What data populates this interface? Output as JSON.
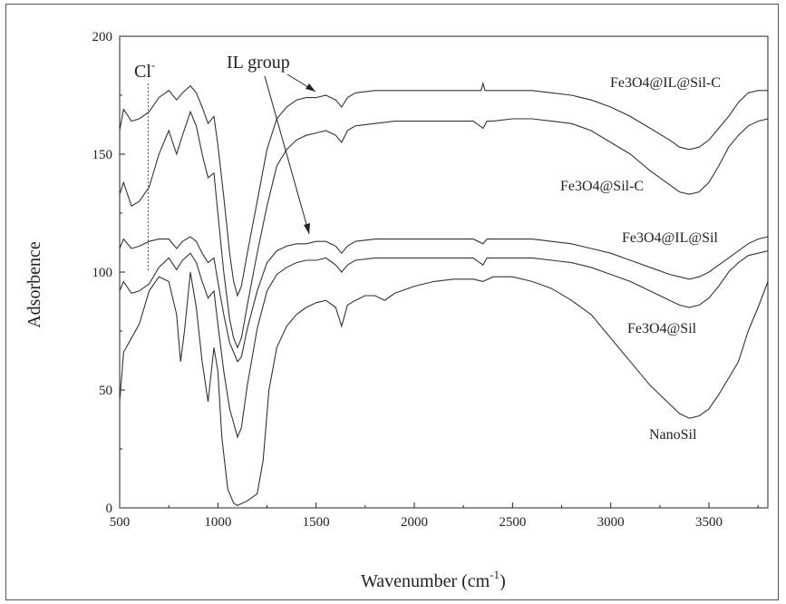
{
  "chart_data": {
    "type": "line",
    "title": "",
    "xlabel": "Wavenumber (cm",
    "xlabel_sup": "-1",
    "xlabel_close": ")",
    "ylabel": "Adsorbence",
    "xlim": [
      500,
      3800
    ],
    "ylim": [
      0,
      200
    ],
    "xticks": [
      500,
      1000,
      1500,
      2000,
      2500,
      3000,
      3500
    ],
    "yticks": [
      0,
      50,
      100,
      150,
      200
    ],
    "grid": false,
    "series": [
      {
        "name": "Fe3O4@IL@Sil-C",
        "points": [
          [
            500,
            160
          ],
          [
            520,
            169
          ],
          [
            560,
            164
          ],
          [
            600,
            165
          ],
          [
            650,
            168
          ],
          [
            700,
            174
          ],
          [
            750,
            177
          ],
          [
            790,
            173
          ],
          [
            820,
            176
          ],
          [
            860,
            179
          ],
          [
            890,
            176
          ],
          [
            920,
            170
          ],
          [
            950,
            163
          ],
          [
            980,
            166
          ],
          [
            1000,
            154
          ],
          [
            1030,
            132
          ],
          [
            1060,
            108
          ],
          [
            1080,
            96
          ],
          [
            1100,
            90
          ],
          [
            1120,
            94
          ],
          [
            1150,
            108
          ],
          [
            1200,
            130
          ],
          [
            1250,
            152
          ],
          [
            1300,
            165
          ],
          [
            1350,
            170
          ],
          [
            1400,
            173
          ],
          [
            1450,
            174
          ],
          [
            1500,
            174
          ],
          [
            1550,
            175
          ],
          [
            1600,
            173
          ],
          [
            1630,
            170
          ],
          [
            1660,
            174
          ],
          [
            1700,
            176
          ],
          [
            1800,
            177
          ],
          [
            1900,
            177
          ],
          [
            2000,
            177
          ],
          [
            2100,
            177
          ],
          [
            2200,
            177
          ],
          [
            2300,
            177
          ],
          [
            2340,
            177
          ],
          [
            2350,
            180
          ],
          [
            2360,
            177
          ],
          [
            2400,
            177
          ],
          [
            2500,
            177
          ],
          [
            2600,
            177
          ],
          [
            2700,
            176
          ],
          [
            2800,
            175
          ],
          [
            2900,
            173
          ],
          [
            3000,
            170
          ],
          [
            3100,
            166
          ],
          [
            3200,
            161
          ],
          [
            3300,
            156
          ],
          [
            3350,
            153
          ],
          [
            3400,
            152
          ],
          [
            3450,
            153
          ],
          [
            3500,
            156
          ],
          [
            3550,
            161
          ],
          [
            3600,
            166
          ],
          [
            3650,
            172
          ],
          [
            3700,
            176
          ],
          [
            3750,
            177
          ],
          [
            3800,
            177
          ]
        ]
      },
      {
        "name": "Fe3O4@Sil-C",
        "points": [
          [
            500,
            133
          ],
          [
            520,
            138
          ],
          [
            560,
            128
          ],
          [
            600,
            130
          ],
          [
            650,
            136
          ],
          [
            700,
            150
          ],
          [
            750,
            160
          ],
          [
            790,
            150
          ],
          [
            820,
            158
          ],
          [
            860,
            168
          ],
          [
            890,
            162
          ],
          [
            920,
            150
          ],
          [
            950,
            140
          ],
          [
            980,
            142
          ],
          [
            1000,
            125
          ],
          [
            1030,
            100
          ],
          [
            1060,
            80
          ],
          [
            1080,
            72
          ],
          [
            1100,
            68
          ],
          [
            1120,
            72
          ],
          [
            1150,
            86
          ],
          [
            1200,
            108
          ],
          [
            1250,
            128
          ],
          [
            1300,
            145
          ],
          [
            1350,
            152
          ],
          [
            1400,
            156
          ],
          [
            1450,
            158
          ],
          [
            1500,
            159
          ],
          [
            1550,
            160
          ],
          [
            1600,
            158
          ],
          [
            1630,
            155
          ],
          [
            1660,
            160
          ],
          [
            1700,
            162
          ],
          [
            1800,
            163
          ],
          [
            1900,
            164
          ],
          [
            2000,
            164
          ],
          [
            2100,
            164
          ],
          [
            2200,
            164
          ],
          [
            2300,
            164
          ],
          [
            2350,
            161
          ],
          [
            2370,
            164
          ],
          [
            2400,
            164
          ],
          [
            2500,
            165
          ],
          [
            2600,
            165
          ],
          [
            2700,
            164
          ],
          [
            2800,
            163
          ],
          [
            2900,
            160
          ],
          [
            3000,
            155
          ],
          [
            3100,
            150
          ],
          [
            3200,
            143
          ],
          [
            3300,
            137
          ],
          [
            3350,
            134
          ],
          [
            3400,
            133
          ],
          [
            3450,
            134
          ],
          [
            3500,
            138
          ],
          [
            3550,
            145
          ],
          [
            3600,
            153
          ],
          [
            3650,
            158
          ],
          [
            3700,
            162
          ],
          [
            3750,
            164
          ],
          [
            3800,
            165
          ]
        ]
      },
      {
        "name": "Fe3O4@IL@Sil",
        "points": [
          [
            500,
            110
          ],
          [
            520,
            114
          ],
          [
            560,
            110
          ],
          [
            600,
            111
          ],
          [
            650,
            113
          ],
          [
            700,
            114
          ],
          [
            750,
            114
          ],
          [
            790,
            110
          ],
          [
            820,
            113
          ],
          [
            860,
            115
          ],
          [
            890,
            113
          ],
          [
            920,
            108
          ],
          [
            950,
            104
          ],
          [
            980,
            106
          ],
          [
            1000,
            96
          ],
          [
            1030,
            82
          ],
          [
            1060,
            70
          ],
          [
            1080,
            66
          ],
          [
            1100,
            62
          ],
          [
            1120,
            64
          ],
          [
            1150,
            76
          ],
          [
            1200,
            92
          ],
          [
            1250,
            104
          ],
          [
            1300,
            109
          ],
          [
            1350,
            111
          ],
          [
            1400,
            112
          ],
          [
            1450,
            112
          ],
          [
            1500,
            113
          ],
          [
            1550,
            113
          ],
          [
            1600,
            111
          ],
          [
            1630,
            108
          ],
          [
            1660,
            111
          ],
          [
            1700,
            113
          ],
          [
            1800,
            114
          ],
          [
            1900,
            114
          ],
          [
            2000,
            114
          ],
          [
            2100,
            114
          ],
          [
            2200,
            114
          ],
          [
            2300,
            114
          ],
          [
            2350,
            112
          ],
          [
            2370,
            114
          ],
          [
            2400,
            114
          ],
          [
            2500,
            114
          ],
          [
            2600,
            114
          ],
          [
            2700,
            113
          ],
          [
            2800,
            112
          ],
          [
            2900,
            110
          ],
          [
            3000,
            108
          ],
          [
            3100,
            105
          ],
          [
            3200,
            102
          ],
          [
            3300,
            99
          ],
          [
            3350,
            98
          ],
          [
            3400,
            97
          ],
          [
            3450,
            98
          ],
          [
            3500,
            100
          ],
          [
            3550,
            103
          ],
          [
            3600,
            106
          ],
          [
            3650,
            109
          ],
          [
            3700,
            112
          ],
          [
            3750,
            114
          ],
          [
            3800,
            115
          ]
        ]
      },
      {
        "name": "Fe3O4@Sil",
        "points": [
          [
            500,
            92
          ],
          [
            520,
            96
          ],
          [
            560,
            91
          ],
          [
            600,
            92
          ],
          [
            650,
            95
          ],
          [
            700,
            102
          ],
          [
            750,
            106
          ],
          [
            790,
            101
          ],
          [
            820,
            105
          ],
          [
            860,
            108
          ],
          [
            890,
            104
          ],
          [
            920,
            96
          ],
          [
            950,
            89
          ],
          [
            980,
            92
          ],
          [
            1000,
            78
          ],
          [
            1030,
            58
          ],
          [
            1060,
            42
          ],
          [
            1080,
            36
          ],
          [
            1100,
            30
          ],
          [
            1120,
            34
          ],
          [
            1150,
            52
          ],
          [
            1200,
            76
          ],
          [
            1250,
            92
          ],
          [
            1300,
            99
          ],
          [
            1350,
            102
          ],
          [
            1400,
            104
          ],
          [
            1450,
            105
          ],
          [
            1500,
            105
          ],
          [
            1550,
            106
          ],
          [
            1600,
            103
          ],
          [
            1630,
            100
          ],
          [
            1660,
            103
          ],
          [
            1700,
            105
          ],
          [
            1800,
            106
          ],
          [
            1900,
            106
          ],
          [
            2000,
            106
          ],
          [
            2100,
            106
          ],
          [
            2200,
            106
          ],
          [
            2300,
            106
          ],
          [
            2350,
            103
          ],
          [
            2370,
            106
          ],
          [
            2400,
            106
          ],
          [
            2500,
            106
          ],
          [
            2600,
            106
          ],
          [
            2700,
            105
          ],
          [
            2800,
            104
          ],
          [
            2900,
            102
          ],
          [
            3000,
            99
          ],
          [
            3100,
            96
          ],
          [
            3200,
            92
          ],
          [
            3300,
            88
          ],
          [
            3350,
            86
          ],
          [
            3400,
            85
          ],
          [
            3450,
            86
          ],
          [
            3500,
            89
          ],
          [
            3550,
            94
          ],
          [
            3600,
            100
          ],
          [
            3650,
            104
          ],
          [
            3700,
            107
          ],
          [
            3750,
            108
          ],
          [
            3800,
            109
          ]
        ]
      },
      {
        "name": "NanoSil",
        "points": [
          [
            500,
            45
          ],
          [
            520,
            66
          ],
          [
            560,
            72
          ],
          [
            600,
            78
          ],
          [
            650,
            92
          ],
          [
            700,
            98
          ],
          [
            750,
            96
          ],
          [
            790,
            82
          ],
          [
            810,
            62
          ],
          [
            830,
            75
          ],
          [
            860,
            100
          ],
          [
            890,
            85
          ],
          [
            920,
            62
          ],
          [
            950,
            45
          ],
          [
            980,
            68
          ],
          [
            1000,
            58
          ],
          [
            1020,
            30
          ],
          [
            1050,
            8
          ],
          [
            1080,
            2
          ],
          [
            1100,
            1
          ],
          [
            1150,
            3
          ],
          [
            1200,
            6
          ],
          [
            1230,
            20
          ],
          [
            1260,
            50
          ],
          [
            1300,
            68
          ],
          [
            1350,
            77
          ],
          [
            1400,
            82
          ],
          [
            1450,
            85
          ],
          [
            1500,
            87
          ],
          [
            1550,
            88
          ],
          [
            1600,
            85
          ],
          [
            1630,
            77
          ],
          [
            1660,
            86
          ],
          [
            1700,
            88
          ],
          [
            1750,
            90
          ],
          [
            1800,
            90
          ],
          [
            1850,
            88
          ],
          [
            1900,
            91
          ],
          [
            2000,
            94
          ],
          [
            2100,
            96
          ],
          [
            2200,
            97
          ],
          [
            2300,
            97
          ],
          [
            2350,
            96
          ],
          [
            2400,
            98
          ],
          [
            2500,
            98
          ],
          [
            2600,
            96
          ],
          [
            2700,
            93
          ],
          [
            2800,
            88
          ],
          [
            2900,
            82
          ],
          [
            3000,
            72
          ],
          [
            3100,
            62
          ],
          [
            3200,
            52
          ],
          [
            3300,
            44
          ],
          [
            3350,
            40
          ],
          [
            3400,
            38
          ],
          [
            3450,
            39
          ],
          [
            3500,
            42
          ],
          [
            3550,
            48
          ],
          [
            3600,
            55
          ],
          [
            3650,
            62
          ],
          [
            3700,
            75
          ],
          [
            3750,
            85
          ],
          [
            3800,
            96
          ]
        ]
      }
    ],
    "annotations": {
      "cl_label": "Cl",
      "cl_sup": "-",
      "cl_x": 645,
      "il_label": "IL group"
    }
  }
}
